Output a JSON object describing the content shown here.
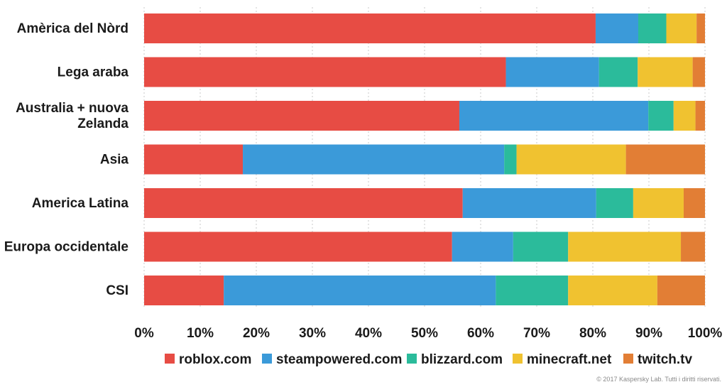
{
  "chart_data": {
    "type": "bar",
    "orientation": "horizontal",
    "stacked": true,
    "normalized": true,
    "categories": [
      [
        "Amèrica del Nòrd"
      ],
      [
        "Lega araba"
      ],
      [
        "Australia + nuova",
        "Zelanda"
      ],
      [
        "Asia"
      ],
      [
        "America Latina"
      ],
      [
        "Europa occidentale"
      ],
      [
        "CSI"
      ]
    ],
    "series": [
      {
        "name": "roblox.com",
        "color": "#e74c44",
        "values": [
          80.5,
          64.5,
          56.2,
          17.6,
          56.8,
          54.9,
          14.2
        ]
      },
      {
        "name": "steampowered.com",
        "color": "#3b9ad9",
        "values": [
          7.6,
          16.6,
          33.7,
          46.6,
          23.8,
          10.9,
          48.5
        ]
      },
      {
        "name": "blizzard.com",
        "color": "#2bbb9b",
        "values": [
          5.0,
          6.9,
          4.5,
          2.2,
          6.6,
          9.8,
          12.9
        ]
      },
      {
        "name": "minecraft.net",
        "color": "#f0c230",
        "values": [
          5.4,
          9.8,
          3.9,
          19.5,
          9.0,
          20.1,
          15.9
        ]
      },
      {
        "name": "twitch.tv",
        "color": "#e27e35",
        "values": [
          1.5,
          2.2,
          1.7,
          14.1,
          3.8,
          4.3,
          8.5
        ]
      }
    ],
    "xticks": [
      "0%",
      "10%",
      "20%",
      "30%",
      "40%",
      "50%",
      "60%",
      "70%",
      "80%",
      "90%",
      "100%"
    ],
    "xlim": [
      0,
      100
    ],
    "grid": true,
    "legend_position": "bottom"
  },
  "copyright": "© 2017 Kaspersky Lab. Tutti i diritti riservati."
}
